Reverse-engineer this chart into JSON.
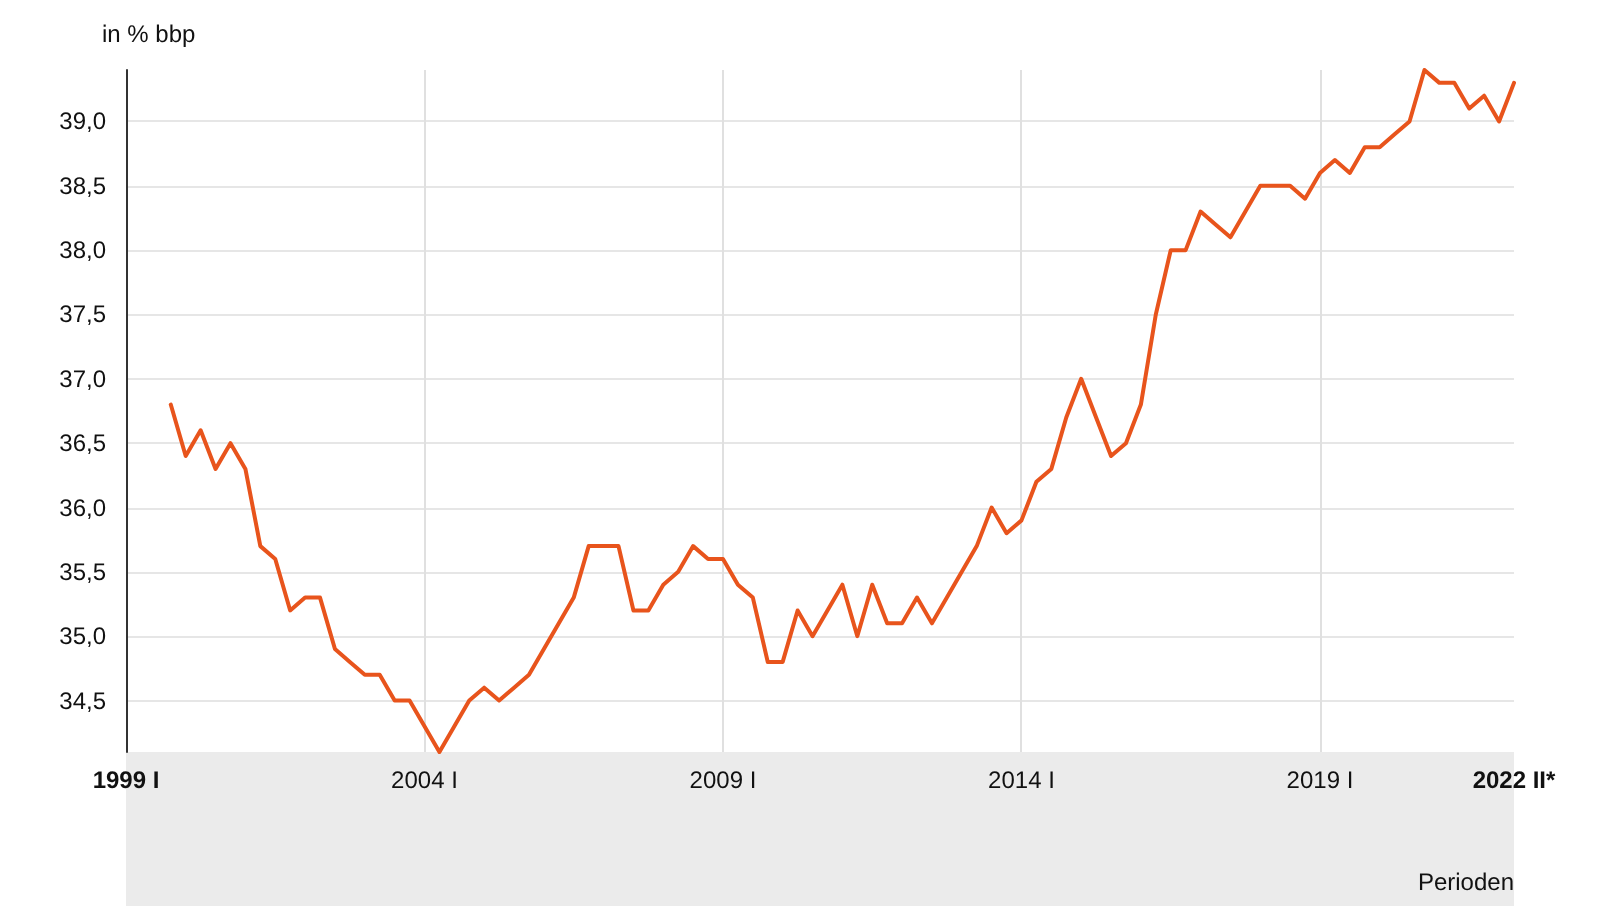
{
  "chart_data": {
    "type": "line",
    "ylabel": "in % bbp",
    "xlabel": "Perioden",
    "categories": [
      "1999 I",
      null,
      null,
      null,
      null,
      null,
      null,
      null,
      null,
      null,
      null,
      null,
      null,
      null,
      null,
      null,
      null,
      null,
      null,
      null,
      "2004 I",
      null,
      null,
      null,
      null,
      null,
      null,
      null,
      null,
      null,
      null,
      null,
      null,
      null,
      null,
      null,
      null,
      null,
      null,
      null,
      "2009 I",
      null,
      null,
      null,
      null,
      null,
      null,
      null,
      null,
      null,
      null,
      null,
      null,
      null,
      null,
      null,
      null,
      null,
      null,
      null,
      "2014 I",
      null,
      null,
      null,
      null,
      null,
      null,
      null,
      null,
      null,
      null,
      null,
      null,
      null,
      null,
      null,
      null,
      null,
      null,
      null,
      "2019 I",
      null,
      null,
      null,
      null,
      null,
      null,
      null,
      null,
      null,
      null,
      null,
      null,
      "2022 II*"
    ],
    "series": [
      {
        "color": "#e8541c",
        "values": [
          null,
          null,
          null,
          36.8,
          36.4,
          36.6,
          36.3,
          36.5,
          36.3,
          35.7,
          35.6,
          35.2,
          35.3,
          35.3,
          34.9,
          34.8,
          34.7,
          34.7,
          34.5,
          34.5,
          34.3,
          34.1,
          34.3,
          34.5,
          34.6,
          34.5,
          34.6,
          34.7,
          34.9,
          35.1,
          35.3,
          35.7,
          35.7,
          35.7,
          35.2,
          35.2,
          35.4,
          35.5,
          35.7,
          35.6,
          35.6,
          35.4,
          35.3,
          34.8,
          34.8,
          35.2,
          35.0,
          35.2,
          35.4,
          35.0,
          35.4,
          35.1,
          35.1,
          35.3,
          35.1,
          35.3,
          35.5,
          35.7,
          36.0,
          35.8,
          35.9,
          36.2,
          36.3,
          36.7,
          37.0,
          36.7,
          36.4,
          36.5,
          36.8,
          37.5,
          38.0,
          38.0,
          38.3,
          38.2,
          38.1,
          38.3,
          38.5,
          38.5,
          38.5,
          38.4,
          38.6,
          38.7,
          38.6,
          38.8,
          38.8,
          38.9,
          39.0,
          39.4,
          39.3,
          39.3,
          39.1,
          39.2,
          39.0,
          39.3
        ]
      }
    ],
    "ylim": [
      34.1,
      39.4
    ],
    "yticks": [
      {
        "value": 34.5,
        "label": "34,5"
      },
      {
        "value": 35,
        "label": "35,0"
      },
      {
        "value": 35.5,
        "label": "35,5"
      },
      {
        "value": 36,
        "label": "36,0"
      },
      {
        "value": 36.5,
        "label": "36,5"
      },
      {
        "value": 37,
        "label": "37,0"
      },
      {
        "value": 37.5,
        "label": "37,5"
      },
      {
        "value": 38,
        "label": "38,0"
      },
      {
        "value": 38.5,
        "label": "38,5"
      },
      {
        "value": 39,
        "label": "39,0"
      }
    ],
    "grid": true,
    "marker": "none",
    "line_style": "solid"
  }
}
